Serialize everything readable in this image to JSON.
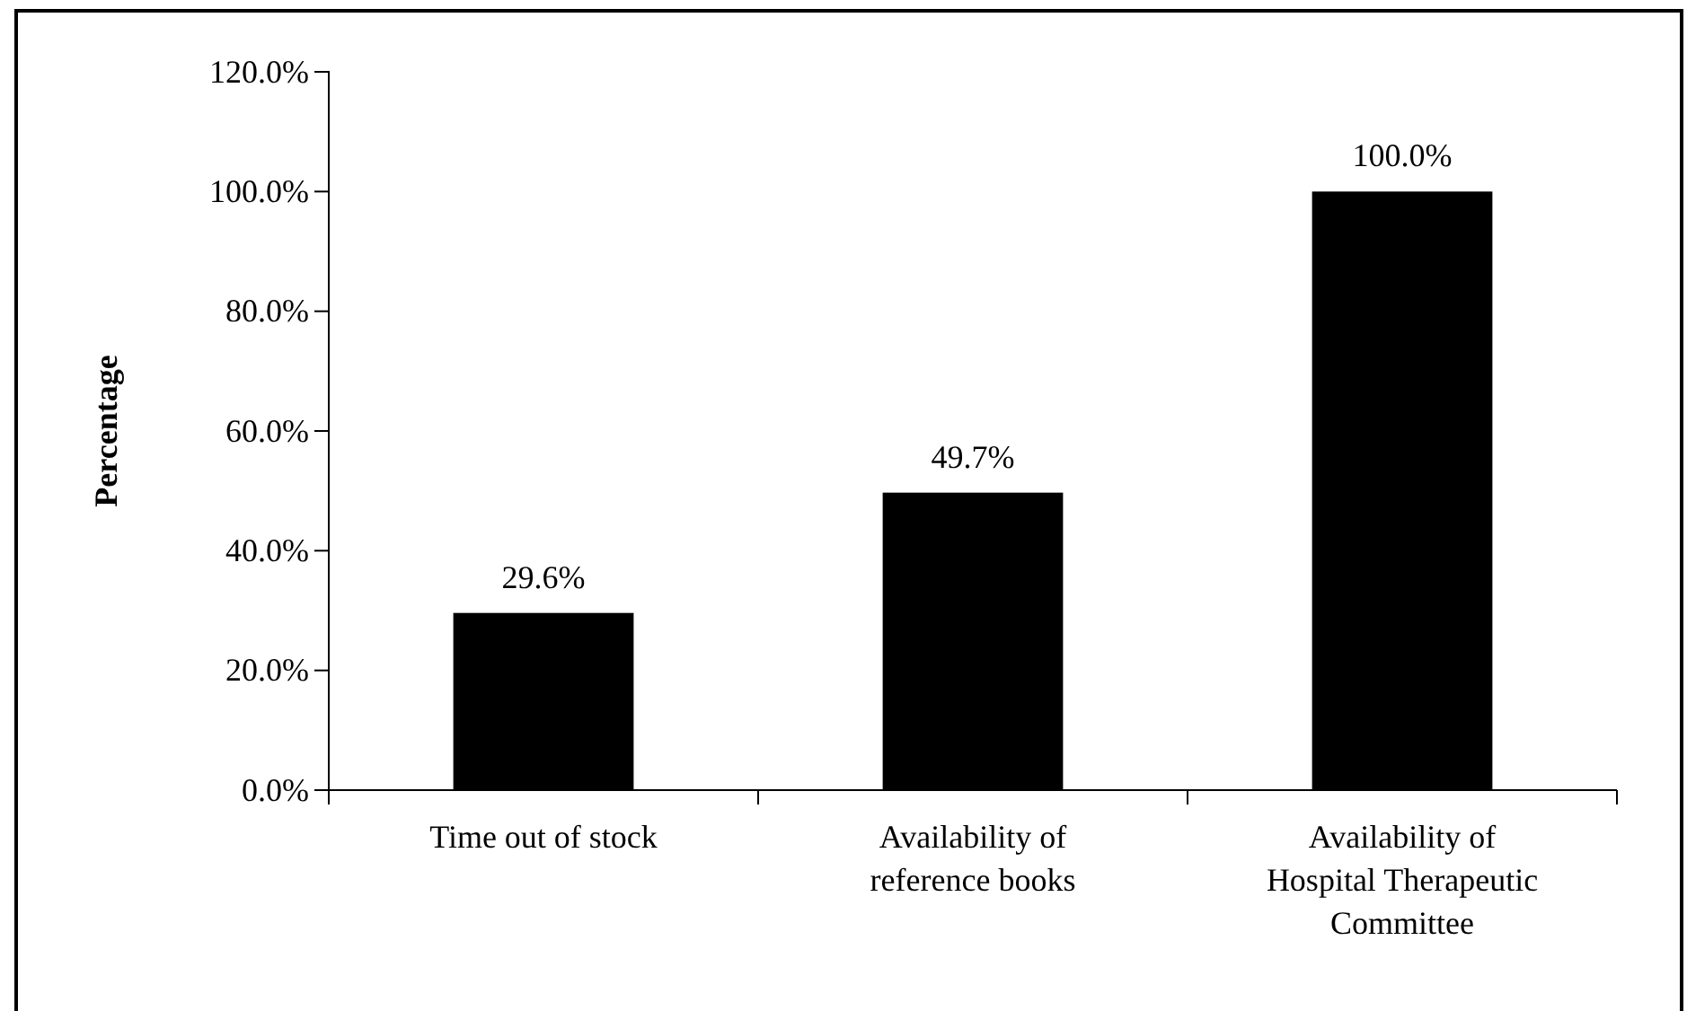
{
  "chart_data": {
    "type": "bar",
    "ylabel": "Percentage",
    "categories": [
      "Time out of stock",
      "Availability of reference books",
      "Availability of Hospital Therapeutic Committee"
    ],
    "values": [
      29.6,
      49.7,
      100.0
    ],
    "color": "#000000",
    "value_labels": [
      "29.6%",
      "49.7%",
      "100.0%"
    ],
    "ylim": [
      0,
      120
    ],
    "yticks": [
      {
        "value": 0,
        "label": "0.0%"
      },
      {
        "value": 20,
        "label": "20.0%"
      },
      {
        "value": 40,
        "label": "40.0%"
      },
      {
        "value": 60,
        "label": "60.0%"
      },
      {
        "value": 80,
        "label": "80.0%"
      },
      {
        "value": 100,
        "label": "100.0%"
      },
      {
        "value": 120,
        "label": "120.0%"
      }
    ],
    "grid": false
  }
}
